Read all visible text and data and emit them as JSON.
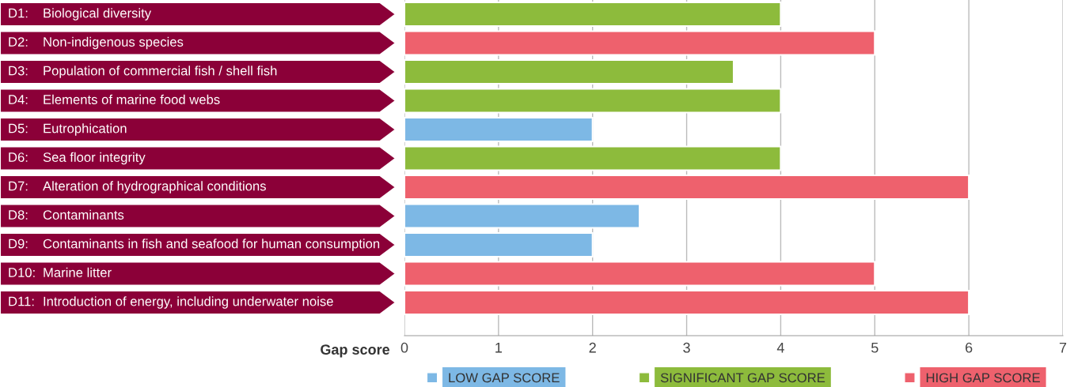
{
  "chart_data": {
    "type": "bar",
    "orientation": "horizontal",
    "categories": [
      "D1: Biological diversity",
      "D2: Non-indigenous species",
      "D3: Population of commercial fish / shell fish",
      "D4: Elements of marine food webs",
      "D5: Eutrophication",
      "D6: Sea floor integrity",
      "D7: Alteration of hydrographical conditions",
      "D8: Contaminants",
      "D9: Contaminants in fish and seafood for human consumption",
      "D10: Marine litter",
      "D11: Introduction of energy, including underwater noise"
    ],
    "series": [
      {
        "name": "LOW GAP SCORE",
        "color": "#7db8e5",
        "values": [
          null,
          null,
          null,
          null,
          2,
          null,
          null,
          2.5,
          2,
          null,
          null
        ]
      },
      {
        "name": "SIGNIFICANT GAP SCORE",
        "color": "#8dbb3c",
        "values": [
          4,
          null,
          3.5,
          4,
          null,
          4,
          null,
          null,
          null,
          null,
          null
        ]
      },
      {
        "name": "HIGH GAP SCORE",
        "color": "#ee616d",
        "values": [
          null,
          5,
          null,
          null,
          null,
          null,
          6,
          null,
          null,
          5,
          6
        ]
      }
    ],
    "xlabel": "Gap score",
    "xlim": [
      0,
      7
    ],
    "xticks": [
      0,
      1,
      2,
      3,
      4,
      5,
      6,
      7
    ],
    "grid": "x",
    "legend": "bottom"
  }
}
